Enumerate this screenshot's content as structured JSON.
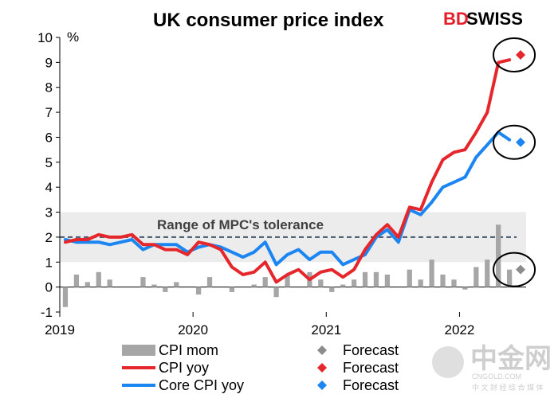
{
  "title": "UK consumer price index",
  "brand": {
    "part1": "BD",
    "part2": "SWISS"
  },
  "watermark": {
    "main": "中金网",
    "sub": "中 文 财 经 综 合 媒 体",
    "url": "CNGOLD.COM"
  },
  "colors": {
    "cpi_mom": "#a6a6a6",
    "cpi_yoy": "#e5262b",
    "core_cpi_yoy": "#1b86f2",
    "forecast_mom": "#8c8c8c",
    "target_line": "#44546a",
    "tolerance_band": "#ececec"
  },
  "chart_data": {
    "type": "bar+line",
    "title": "UK consumer price index",
    "ylabel": "%",
    "ylim": [
      -1,
      10
    ],
    "yticks": [
      -1,
      0,
      1,
      2,
      3,
      4,
      5,
      6,
      7,
      8,
      9,
      10
    ],
    "xticks": [
      {
        "label": "2019",
        "index": 0
      },
      {
        "label": "2020",
        "index": 12
      },
      {
        "label": "2021",
        "index": 24
      },
      {
        "label": "2022",
        "index": 36
      }
    ],
    "months": 41,
    "tolerance_band": {
      "label": "Range of MPC's tolerance",
      "low": 1,
      "high": 3,
      "target": 2
    },
    "series": [
      {
        "name": "CPI mom",
        "kind": "bar",
        "values": [
          -0.8,
          0.5,
          0.2,
          0.6,
          0.3,
          0.0,
          0.0,
          0.4,
          0.1,
          -0.2,
          0.2,
          0.0,
          -0.3,
          0.4,
          0.0,
          -0.2,
          0.0,
          0.1,
          0.4,
          -0.4,
          0.5,
          0.0,
          0.6,
          0.3,
          -0.2,
          0.1,
          0.3,
          0.6,
          0.6,
          0.5,
          0.0,
          0.7,
          0.3,
          1.1,
          0.5,
          0.3,
          -0.1,
          0.8,
          1.1,
          2.5,
          0.7
        ]
      },
      {
        "name": "CPI yoy",
        "kind": "line",
        "values": [
          1.8,
          1.9,
          1.9,
          2.1,
          2.0,
          2.0,
          2.1,
          1.7,
          1.7,
          1.5,
          1.5,
          1.3,
          1.8,
          1.7,
          1.5,
          0.8,
          0.5,
          0.6,
          1.0,
          0.2,
          0.5,
          0.7,
          0.3,
          0.6,
          0.7,
          0.4,
          0.7,
          1.5,
          2.1,
          2.5,
          2.0,
          3.2,
          3.1,
          4.2,
          5.1,
          5.4,
          5.5,
          6.2,
          7.0,
          9.0,
          9.1
        ]
      },
      {
        "name": "Core CPI yoy",
        "kind": "line",
        "values": [
          1.9,
          1.8,
          1.8,
          1.8,
          1.7,
          1.8,
          1.9,
          1.5,
          1.7,
          1.7,
          1.7,
          1.4,
          1.6,
          1.7,
          1.6,
          1.4,
          1.2,
          1.4,
          1.8,
          0.9,
          1.3,
          1.5,
          1.1,
          1.4,
          1.4,
          0.9,
          1.1,
          1.3,
          2.0,
          2.3,
          1.8,
          3.1,
          2.9,
          3.4,
          4.0,
          4.2,
          4.4,
          5.2,
          5.7,
          6.2,
          5.9
        ]
      },
      {
        "name": "Forecast",
        "kind": "marker",
        "color": "gray",
        "index": 41,
        "value": 0.7
      },
      {
        "name": "Forecast",
        "kind": "marker",
        "color": "red",
        "index": 41,
        "value": 9.3
      },
      {
        "name": "Forecast",
        "kind": "marker",
        "color": "blue",
        "index": 41,
        "value": 5.8
      }
    ],
    "legend": [
      {
        "label": "CPI mom",
        "style": "bar",
        "color": "#a6a6a6"
      },
      {
        "label": "CPI yoy",
        "style": "line",
        "color": "#e5262b"
      },
      {
        "label": "Core CPI yoy",
        "style": "line",
        "color": "#1b86f2"
      },
      {
        "label": "Forecast",
        "style": "diamond",
        "color": "#8c8c8c"
      },
      {
        "label": "Forecast",
        "style": "diamond",
        "color": "#e5262b"
      },
      {
        "label": "Forecast",
        "style": "diamond",
        "color": "#1b86f2"
      }
    ],
    "legend_position": "bottom"
  }
}
